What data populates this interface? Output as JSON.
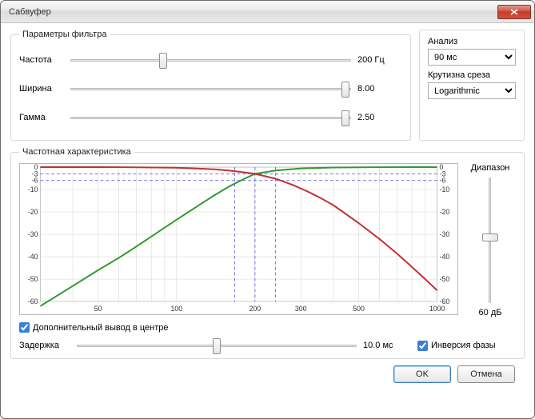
{
  "window": {
    "title": "Сабвуфер"
  },
  "filter": {
    "legend": "Параметры фильтра",
    "frequency": {
      "label": "Частота",
      "value": "200 Гц",
      "thumb_pct": 33
    },
    "width": {
      "label": "Ширина",
      "value": "8.00",
      "thumb_pct": 98
    },
    "gamma": {
      "label": "Гамма",
      "value": "2.50",
      "thumb_pct": 98
    }
  },
  "analysis": {
    "label": "Анализ",
    "selected": "90 мс"
  },
  "slope": {
    "label": "Крутизна среза",
    "selected": "Logarithmic"
  },
  "response": {
    "legend": "Частотная характеристика",
    "range_label": "Диапазон",
    "range_value": "60 дБ",
    "range_thumb_pct": 48,
    "chart": {
      "type": "line",
      "background_color": "#ffffff",
      "grid_color": "#d9d9d9",
      "axis_color": "#808080",
      "label_fontsize": 9,
      "x_scale": "log",
      "xlim": [
        30,
        1000
      ],
      "x_ticks": [
        50,
        100,
        200,
        300,
        500,
        1000
      ],
      "ylim": [
        -60,
        0
      ],
      "y_ticks": [
        0,
        -3,
        -6,
        -10,
        -20,
        -30,
        -40,
        -50,
        -60
      ],
      "marker_lines": {
        "color": "#4a4adf",
        "dash": "4,3",
        "horizontal_y": [
          -3,
          -6
        ],
        "vertical_x": [
          167,
          200,
          240
        ]
      },
      "series": [
        {
          "name": "highpass",
          "color": "#2f9a2f",
          "width": 2,
          "points": [
            [
              30,
              -62
            ],
            [
              40,
              -53
            ],
            [
              50,
              -46
            ],
            [
              60,
              -40.5
            ],
            [
              70,
              -35.5
            ],
            [
              80,
              -31
            ],
            [
              90,
              -27
            ],
            [
              100,
              -23.5
            ],
            [
              120,
              -17.5
            ],
            [
              140,
              -12.5
            ],
            [
              160,
              -8.5
            ],
            [
              180,
              -5.5
            ],
            [
              200,
              -3
            ],
            [
              240,
              -1.5
            ],
            [
              300,
              -0.6
            ],
            [
              400,
              -0.2
            ],
            [
              600,
              -0.05
            ],
            [
              1000,
              0
            ]
          ]
        },
        {
          "name": "lowpass",
          "color": "#c23030",
          "width": 2,
          "points": [
            [
              30,
              0
            ],
            [
              60,
              -0.05
            ],
            [
              100,
              -0.3
            ],
            [
              140,
              -1
            ],
            [
              160,
              -1.6
            ],
            [
              180,
              -2.3
            ],
            [
              200,
              -3
            ],
            [
              240,
              -5.2
            ],
            [
              280,
              -8
            ],
            [
              320,
              -11
            ],
            [
              360,
              -14
            ],
            [
              400,
              -17
            ],
            [
              500,
              -25
            ],
            [
              600,
              -32
            ],
            [
              700,
              -38.5
            ],
            [
              800,
              -44.5
            ],
            [
              900,
              -50
            ],
            [
              1000,
              -55
            ]
          ]
        }
      ]
    }
  },
  "additional_output": {
    "label": "Дополнительный вывод в центре",
    "checked": true
  },
  "delay": {
    "label": "Задержка",
    "value": "10.0 мс",
    "thumb_pct": 50
  },
  "invert_phase": {
    "label": "Инверсия фазы",
    "checked": true
  },
  "buttons": {
    "ok": "OK",
    "cancel": "Отмена"
  }
}
